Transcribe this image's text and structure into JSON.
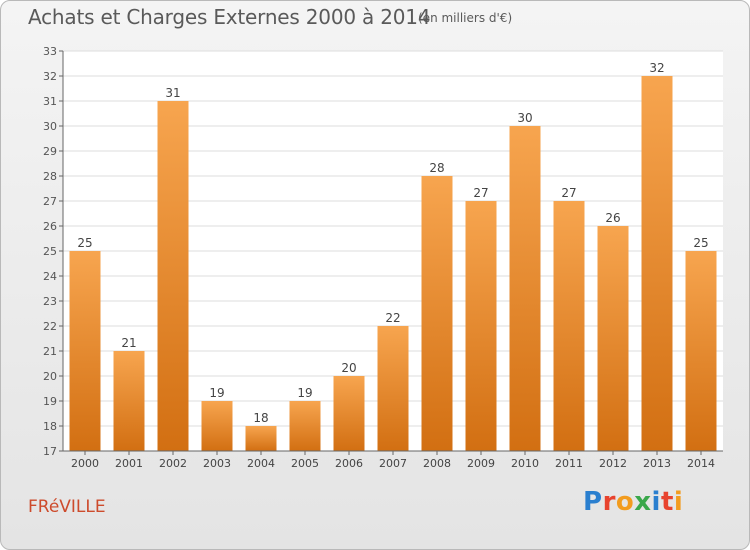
{
  "header": {
    "title": "Achats et Charges Externes 2000 à 2014",
    "subtitle": "(en milliers d'€)"
  },
  "footer": {
    "commune": "FRéVILLE",
    "logo": "Proxiti",
    "logo_colors": [
      "#2a7fcf",
      "#e8432e",
      "#f29c1f",
      "#3aa84b",
      "#2a7fcf",
      "#e8432e",
      "#f29c1f"
    ]
  },
  "chart_data": {
    "type": "bar",
    "title": "Achats et Charges Externes 2000 à 2014",
    "subtitle": "(en milliers d'€)",
    "xlabel": "",
    "ylabel": "",
    "categories": [
      "2000",
      "2001",
      "2002",
      "2003",
      "2004",
      "2005",
      "2006",
      "2007",
      "2008",
      "2009",
      "2010",
      "2011",
      "2012",
      "2013",
      "2014"
    ],
    "values": [
      25,
      21,
      31,
      19,
      18,
      19,
      20,
      22,
      28,
      27,
      30,
      27,
      26,
      32,
      25
    ],
    "ylim": [
      17,
      33
    ],
    "yticks": [
      17,
      18,
      19,
      20,
      21,
      22,
      23,
      24,
      25,
      26,
      27,
      28,
      29,
      30,
      31,
      32,
      33
    ],
    "grid": true,
    "legend": "none",
    "bar_color_top": "#f7a54f",
    "bar_color_bottom": "#d26f12",
    "grid_color": "#dddddd",
    "axis_color": "#666666"
  }
}
